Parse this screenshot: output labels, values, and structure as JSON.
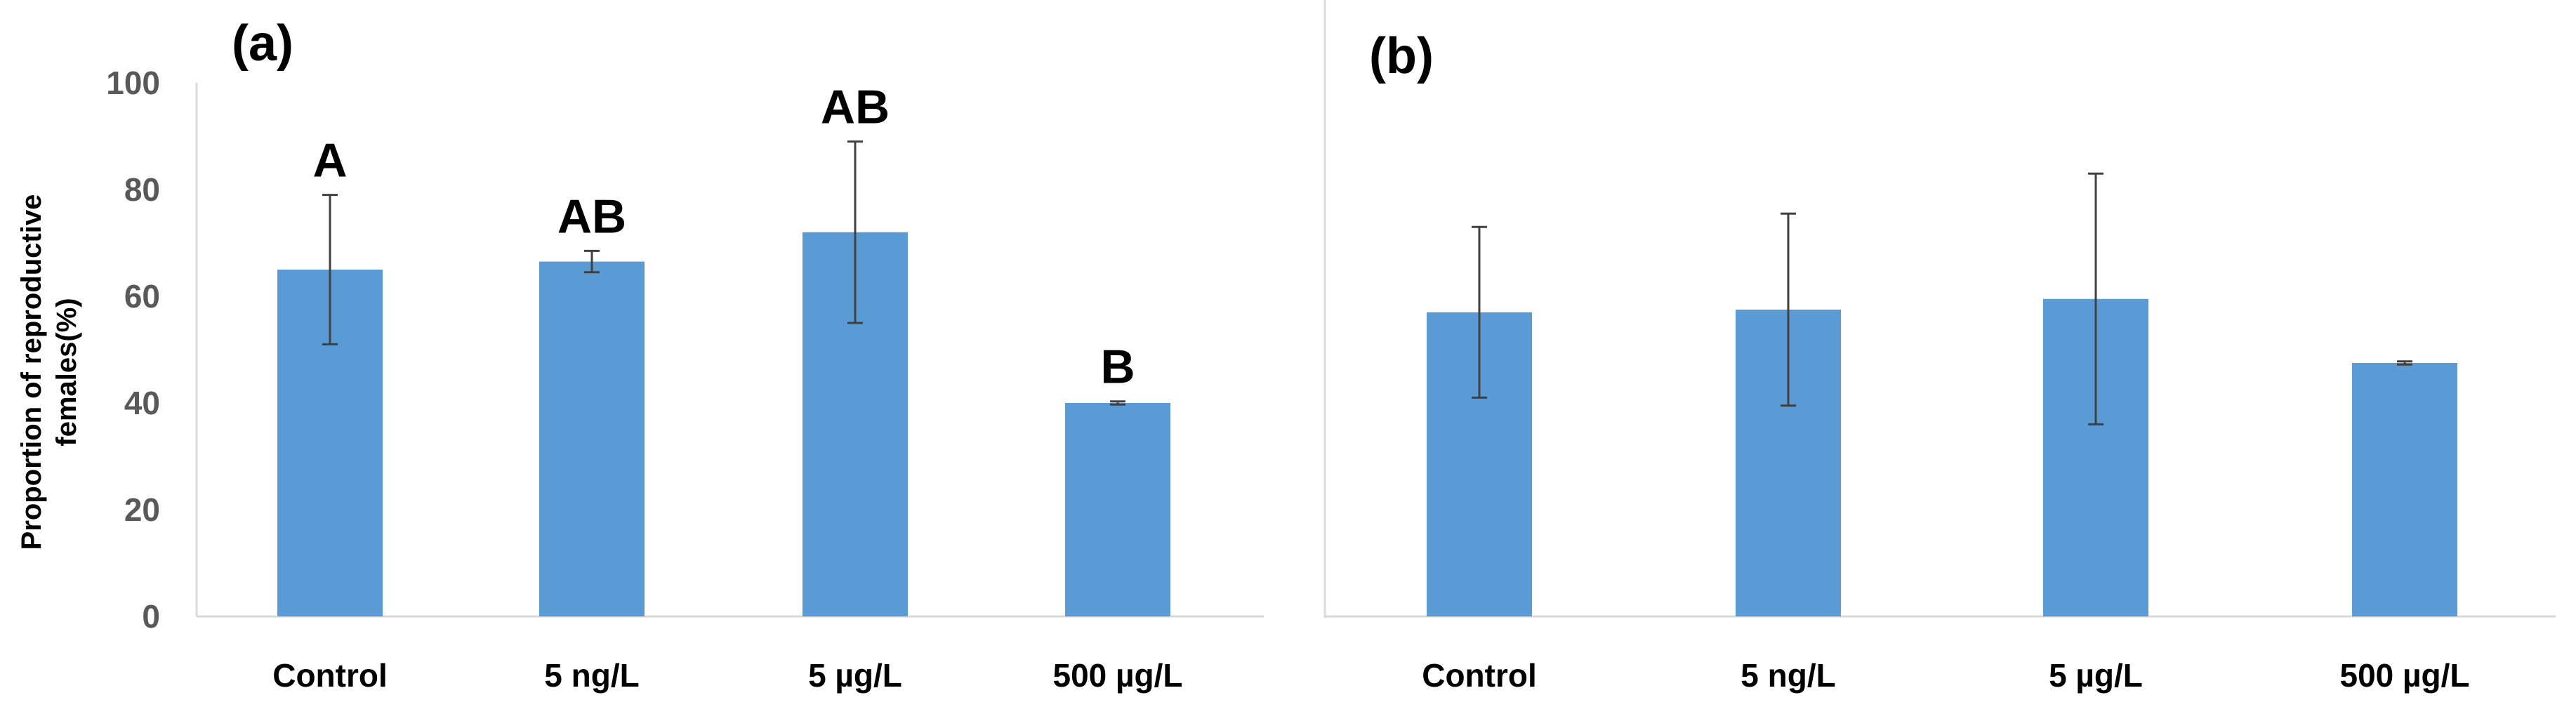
{
  "chart_data": [
    {
      "type": "bar",
      "panel_label": "(a)",
      "ylabel": "Proportion of reproductive females(%)",
      "ylabel_lines": [
        "Proportion of reproductive",
        "females(%)"
      ],
      "ylim": [
        0,
        100
      ],
      "yticks": [
        "0",
        "20",
        "40",
        "60",
        "80",
        "100"
      ],
      "grid": false,
      "categories": [
        "Control",
        "5 ng/L",
        "5 µg/L",
        "500 µg/L"
      ],
      "values": [
        65,
        66.5,
        72,
        40
      ],
      "error": [
        14,
        2,
        17,
        0.3
      ],
      "significance_letters": [
        "A",
        "AB",
        "AB",
        "B"
      ],
      "bar_color": "#5b9bd5",
      "error_color": "#404040"
    },
    {
      "type": "bar",
      "panel_label": "(b)",
      "ylim": [
        0,
        100
      ],
      "grid": false,
      "categories": [
        "Control",
        "5 ng/L",
        "5 µg/L",
        "500 µg/L"
      ],
      "values": [
        57,
        57.5,
        59.5,
        47.5
      ],
      "error": [
        16,
        18,
        23.5,
        0.3
      ],
      "bar_color": "#5b9bd5",
      "error_color": "#404040"
    }
  ]
}
